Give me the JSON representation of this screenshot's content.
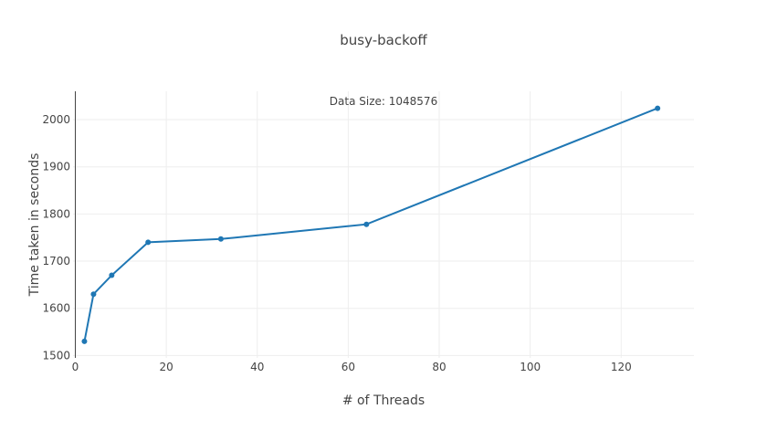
{
  "chart_data": {
    "type": "line",
    "title": "busy-backoff",
    "annotation": "Data Size: 1048576",
    "xlabel": "# of Threads",
    "ylabel": "Time taken in seconds",
    "xlim": [
      -0.5,
      136
    ],
    "ylim": [
      1495,
      2060
    ],
    "xticks": [
      0,
      20,
      40,
      60,
      80,
      100,
      120
    ],
    "yticks": [
      1500,
      1600,
      1700,
      1800,
      1900,
      2000
    ],
    "grid": true,
    "series": [
      {
        "x": [
          2,
          4,
          8,
          16,
          32,
          64,
          128
        ],
        "y": [
          1530,
          1630,
          1670,
          1740,
          1747,
          1778,
          2024
        ],
        "color": "#1f77b4"
      }
    ]
  }
}
